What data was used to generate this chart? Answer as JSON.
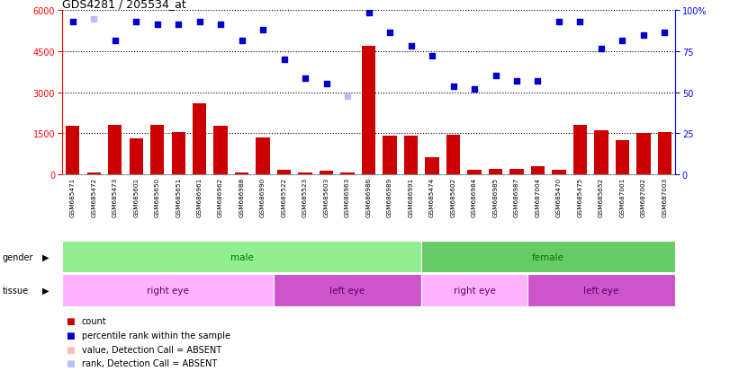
{
  "title": "GDS4281 / 205534_at",
  "samples": [
    "GSM685471",
    "GSM685472",
    "GSM685473",
    "GSM685601",
    "GSM685650",
    "GSM685651",
    "GSM686961",
    "GSM686962",
    "GSM686988",
    "GSM686990",
    "GSM685522",
    "GSM685523",
    "GSM685603",
    "GSM686963",
    "GSM686986",
    "GSM686989",
    "GSM686991",
    "GSM685474",
    "GSM685602",
    "GSM686984",
    "GSM686985",
    "GSM686987",
    "GSM687004",
    "GSM685470",
    "GSM685475",
    "GSM685652",
    "GSM687001",
    "GSM687002",
    "GSM687003"
  ],
  "count_values": [
    1750,
    60,
    1800,
    1300,
    1800,
    1550,
    2600,
    1750,
    50,
    1350,
    150,
    60,
    130,
    50,
    4700,
    1400,
    1400,
    600,
    1450,
    160,
    200,
    200,
    280,
    160,
    1800,
    1600,
    1250,
    1500,
    1550
  ],
  "rank_values": [
    5600,
    5700,
    4900,
    5600,
    5500,
    5500,
    5600,
    5500,
    4900,
    5300,
    4200,
    3500,
    3300,
    2850,
    5900,
    5200,
    4700,
    4350,
    3200,
    3100,
    3600,
    3400,
    3400,
    5600,
    5600,
    4600,
    4900,
    5100,
    5200
  ],
  "absent_count_indices": [],
  "absent_rank_indices": [
    1,
    13
  ],
  "gender_groups": [
    {
      "label": "male",
      "start": 0,
      "end": 17,
      "color": "#90EE90"
    },
    {
      "label": "female",
      "start": 17,
      "end": 29,
      "color": "#66CC66"
    }
  ],
  "tissue_groups": [
    {
      "label": "right eye",
      "start": 0,
      "end": 10,
      "color": "#FFB3FF"
    },
    {
      "label": "left eye",
      "start": 10,
      "end": 17,
      "color": "#CC55CC"
    },
    {
      "label": "right eye",
      "start": 17,
      "end": 22,
      "color": "#FFB3FF"
    },
    {
      "label": "left eye",
      "start": 22,
      "end": 29,
      "color": "#CC55CC"
    }
  ],
  "ylim_left": [
    0,
    6000
  ],
  "ylim_right": [
    0,
    100
  ],
  "yticks_left": [
    0,
    1500,
    3000,
    4500,
    6000
  ],
  "yticks_right": [
    0,
    25,
    50,
    75,
    100
  ],
  "bar_color": "#CC0000",
  "scatter_color": "#0000CC",
  "absent_bar_color": "#FFBBBB",
  "absent_scatter_color": "#BBBBFF",
  "plot_bg": "#FFFFFF",
  "xtick_bg": "#DDDDDD"
}
